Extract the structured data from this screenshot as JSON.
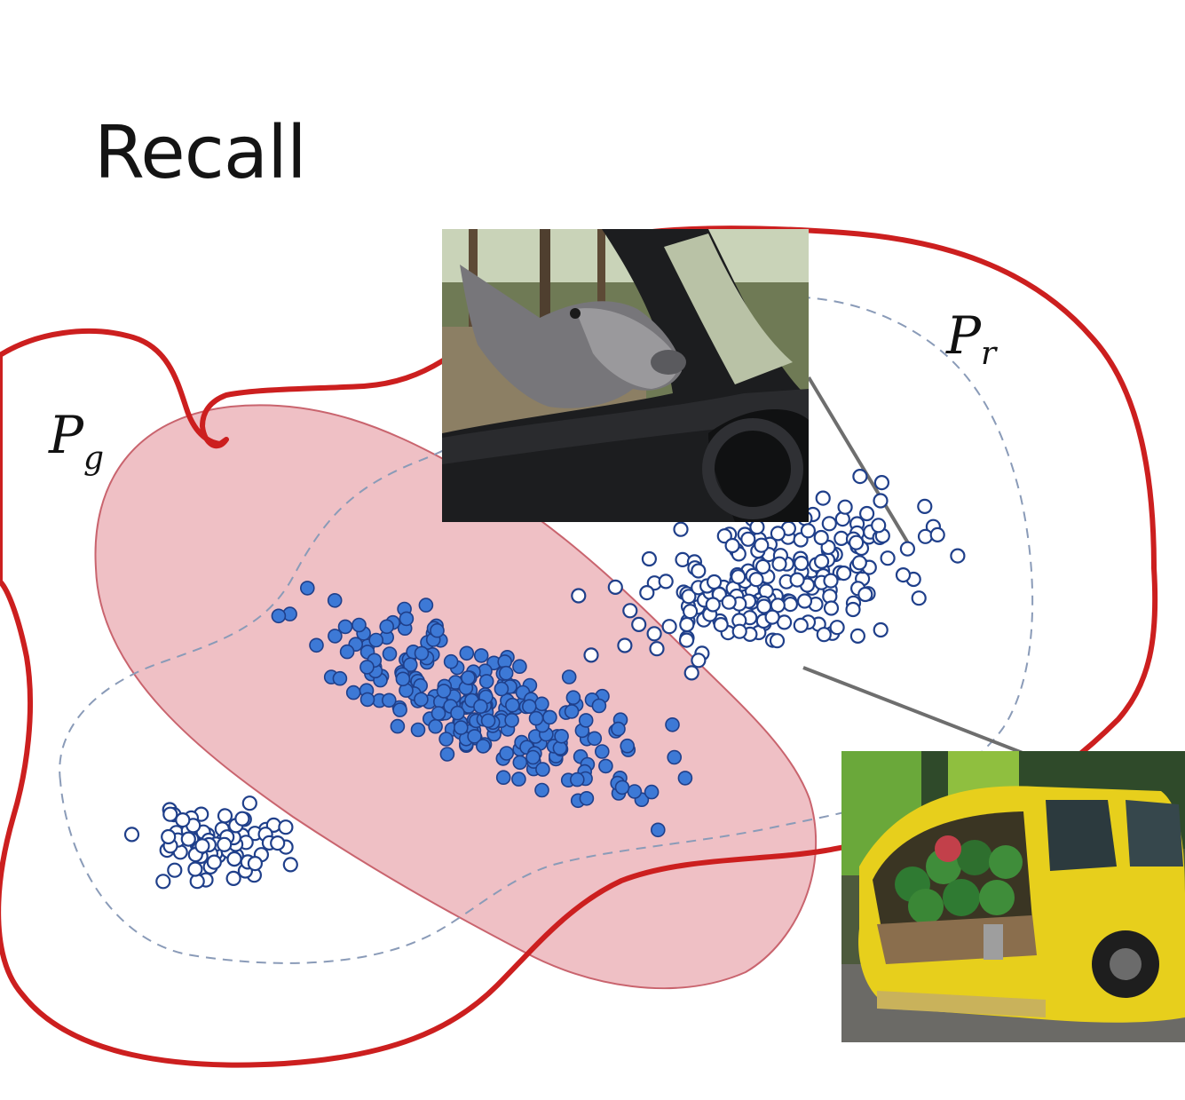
{
  "slide": {
    "title": "Recall",
    "footer": ""
  },
  "labels": {
    "generated_dist": {
      "base": "P",
      "sub": "g"
    },
    "real_dist": {
      "base": "P",
      "sub": "r"
    }
  },
  "images": [
    {
      "name": "photo-donkey-car-window",
      "icon": "donkey-photo"
    },
    {
      "name": "photo-yellow-car-watermelons",
      "icon": "watermelon-car-photo"
    }
  ],
  "colors": {
    "ink_red": "#cc1f1f",
    "fill_pink": "#e9a7ae",
    "fill_pink_stroke": "#c9646e",
    "dash": "#8a9bb8",
    "point_filled": "#3d79d6",
    "point_stroke": "#1f3f8a",
    "connector": "#6e6e6e"
  }
}
